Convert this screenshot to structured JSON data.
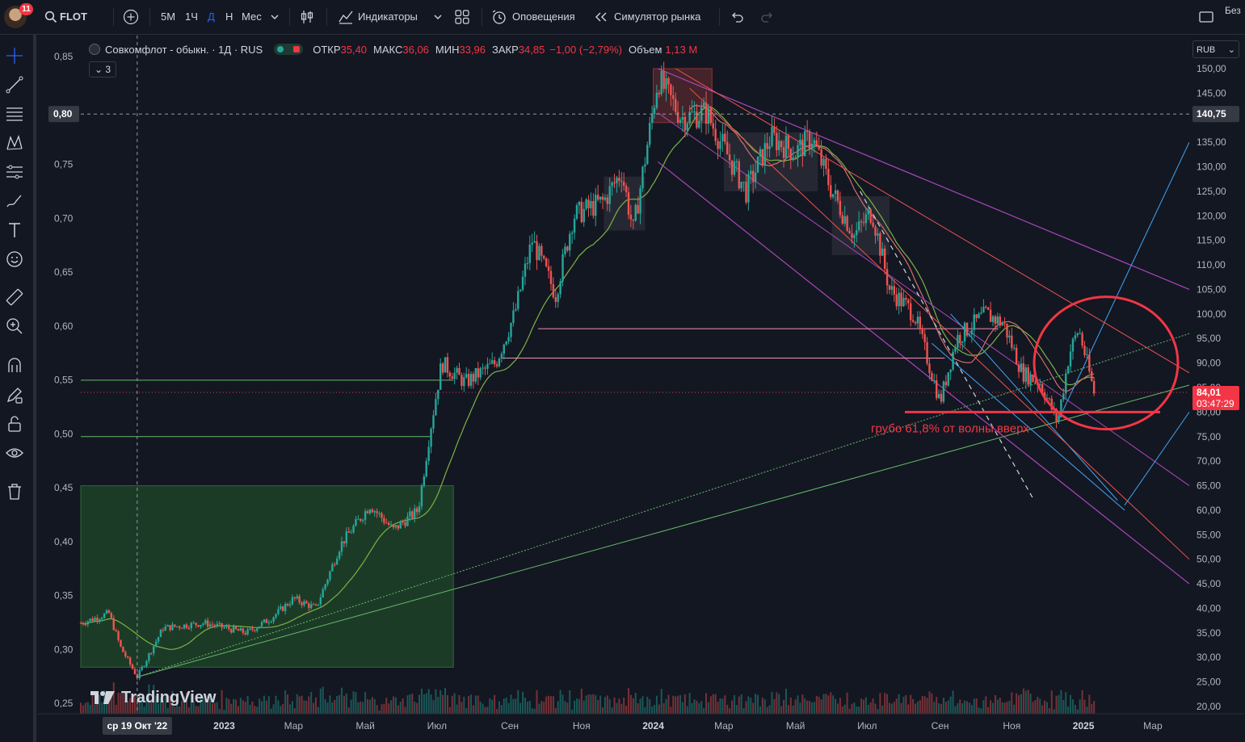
{
  "topbar": {
    "notifications": "11",
    "symbol": "FLOT",
    "intervals": [
      "5М",
      "1Ч",
      "Д",
      "Н",
      "Мес"
    ],
    "active_interval": "Д",
    "indicators_label": "Индикаторы",
    "alerts_label": "Оповещения",
    "simulator_label": "Симулятор рынка",
    "right_label": "Без"
  },
  "legend": {
    "name": "Совкомфлот - обыкн. · 1Д · RUS",
    "open_label": "ОТКР",
    "open": "35,40",
    "high_label": "МАКС",
    "high": "36,06",
    "low_label": "МИН",
    "low": "33,96",
    "close_label": "ЗАКР",
    "close": "34,85",
    "change": "−1,00 (−2,79%)",
    "volume_label": "Объем",
    "volume": "1,13 М",
    "collapsed_count": "3"
  },
  "currency": "RUB",
  "tradingview_label": "TradingView",
  "annotation": "грубо 61,8% от волны вверх",
  "chart_data": {
    "type": "candlestick",
    "symbol": "FLOT",
    "timeframe": "1Д",
    "last_price": "84,01",
    "countdown": "03:47:29",
    "crosshair_price": "140,75",
    "crosshair_left_value": "0,80",
    "crosshair_date": "ср 19 Окт '22",
    "right_axis": {
      "ticks": [
        "150,00",
        "145,00",
        "140,00",
        "135,00",
        "130,00",
        "125,00",
        "120,00",
        "115,00",
        "110,00",
        "105,00",
        "100,00",
        "95,00",
        "90,00",
        "85,00",
        "80,00",
        "75,00",
        "70,00",
        "65,00",
        "60,00",
        "55,00",
        "50,00",
        "45,00",
        "40,00",
        "35,00",
        "30,00",
        "25,00",
        "20,00"
      ],
      "ylim": [
        20,
        150
      ]
    },
    "left_axis": {
      "ticks": [
        "0,85",
        "0,80",
        "0,75",
        "0,70",
        "0,65",
        "0,60",
        "0,55",
        "0,50",
        "0,45",
        "0,40",
        "0,35",
        "0,30",
        "0,25"
      ]
    },
    "x_axis": {
      "ticks": [
        "2023",
        "Мар",
        "Май",
        "Июл",
        "Сен",
        "Ноя",
        "2024",
        "Мар",
        "Май",
        "Июл",
        "Сен",
        "Ноя",
        "2025",
        "Мар"
      ],
      "range": [
        "2022-09",
        "2025-04"
      ]
    },
    "price_path": [
      {
        "date": "2022-09-01",
        "price": 37
      },
      {
        "date": "2022-09-25",
        "price": 39
      },
      {
        "date": "2022-10-05",
        "price": 32
      },
      {
        "date": "2022-10-19",
        "price": 26
      },
      {
        "date": "2022-11-10",
        "price": 36
      },
      {
        "date": "2022-12-15",
        "price": 37
      },
      {
        "date": "2023-01-20",
        "price": 35
      },
      {
        "date": "2023-02-10",
        "price": 38
      },
      {
        "date": "2023-03-01",
        "price": 42
      },
      {
        "date": "2023-03-20",
        "price": 40
      },
      {
        "date": "2023-04-10",
        "price": 53
      },
      {
        "date": "2023-05-05",
        "price": 61
      },
      {
        "date": "2023-05-25",
        "price": 56
      },
      {
        "date": "2023-06-15",
        "price": 60
      },
      {
        "date": "2023-06-25",
        "price": 76
      },
      {
        "date": "2023-07-05",
        "price": 90
      },
      {
        "date": "2023-07-25",
        "price": 86
      },
      {
        "date": "2023-08-20",
        "price": 90
      },
      {
        "date": "2023-09-05",
        "price": 100
      },
      {
        "date": "2023-09-20",
        "price": 115
      },
      {
        "date": "2023-10-10",
        "price": 104
      },
      {
        "date": "2023-10-25",
        "price": 120
      },
      {
        "date": "2023-11-20",
        "price": 123
      },
      {
        "date": "2023-12-05",
        "price": 129
      },
      {
        "date": "2023-12-15",
        "price": 117
      },
      {
        "date": "2023-12-28",
        "price": 136
      },
      {
        "date": "2024-01-05",
        "price": 148
      },
      {
        "date": "2024-01-25",
        "price": 140
      },
      {
        "date": "2024-02-15",
        "price": 141
      },
      {
        "date": "2024-03-05",
        "price": 132
      },
      {
        "date": "2024-03-20",
        "price": 125
      },
      {
        "date": "2024-04-10",
        "price": 136
      },
      {
        "date": "2024-05-01",
        "price": 133
      },
      {
        "date": "2024-05-15",
        "price": 136
      },
      {
        "date": "2024-06-01",
        "price": 125
      },
      {
        "date": "2024-06-20",
        "price": 116
      },
      {
        "date": "2024-07-05",
        "price": 121
      },
      {
        "date": "2024-07-20",
        "price": 105
      },
      {
        "date": "2024-08-10",
        "price": 100
      },
      {
        "date": "2024-09-01",
        "price": 82
      },
      {
        "date": "2024-09-15",
        "price": 95
      },
      {
        "date": "2024-10-10",
        "price": 100
      },
      {
        "date": "2024-10-25",
        "price": 98
      },
      {
        "date": "2024-11-10",
        "price": 88
      },
      {
        "date": "2024-11-25",
        "price": 86
      },
      {
        "date": "2024-12-10",
        "price": 78
      },
      {
        "date": "2024-12-20",
        "price": 92
      },
      {
        "date": "2024-12-28",
        "price": 97
      },
      {
        "date": "2025-01-10",
        "price": 84
      }
    ],
    "zones": [
      {
        "type": "accumulation",
        "from": "2022-09-01",
        "to": "2023-07-15",
        "low": 28,
        "high": 65,
        "color": "#2e7d32"
      },
      {
        "type": "distribution",
        "from": "2024-01-01",
        "to": "2024-02-20",
        "low": 139,
        "high": 150,
        "color": "#a33a3a"
      }
    ],
    "horizontal_levels": [
      {
        "price": 80,
        "from": "2024-12-01",
        "to": "2025-02-20",
        "color": "#f23645",
        "kind": "support"
      },
      {
        "price": 84,
        "from": "2022-09-01",
        "to": "2025-04-01",
        "color": "#f23645",
        "kind": "last-price"
      }
    ]
  }
}
